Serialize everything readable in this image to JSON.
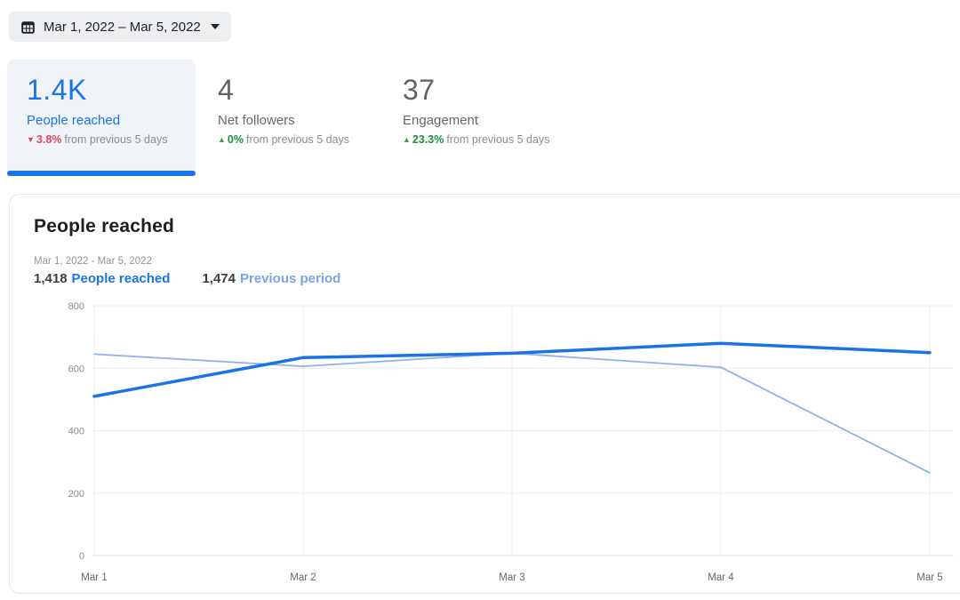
{
  "date_picker": {
    "label": "Mar 1, 2022 – Mar 5, 2022"
  },
  "metrics": [
    {
      "value": "1.4K",
      "label": "People reached",
      "direction": "down",
      "change": "3.8%",
      "suffix": "from previous 5 days",
      "active": true
    },
    {
      "value": "4",
      "label": "Net followers",
      "direction": "up",
      "change": "0%",
      "suffix": "from previous 5 days",
      "active": false
    },
    {
      "value": "37",
      "label": "Engagement",
      "direction": "up",
      "change": "23.3%",
      "suffix": "from previous 5 days",
      "active": false
    }
  ],
  "trend_icons": {
    "up": "▲",
    "down": "▼"
  },
  "chart_card": {
    "title": "People reached",
    "date_range": "Mar 1, 2022 - Mar 5, 2022",
    "legend": [
      {
        "value": "1,418",
        "label": "People reached"
      },
      {
        "value": "1,474",
        "label": "Previous period"
      }
    ]
  },
  "chart_data": {
    "type": "line",
    "title": "People reached",
    "categories": [
      "Mar 1",
      "Mar 2",
      "Mar 3",
      "Mar 4",
      "Mar 5"
    ],
    "series": [
      {
        "name": "People reached",
        "values": [
          510,
          634,
          648,
          680,
          650
        ],
        "color": "#1b74e4",
        "stroke_width": 3.5
      },
      {
        "name": "Previous period",
        "values": [
          645,
          606,
          648,
          603,
          265
        ],
        "color": "#8fb1ea",
        "stroke_width": 1.8
      }
    ],
    "yticks": [
      0,
      200,
      400,
      600,
      800
    ],
    "ylim": [
      0,
      800
    ],
    "xlabel": "",
    "ylabel": "",
    "grid": true,
    "legend_position": "top-left"
  },
  "colors": {
    "accent_blue": "#1b74e4",
    "previous_period_blue": "#8fb1ea",
    "negative_red": "#e0455a",
    "positive_green": "#31a24c",
    "grid_line": "#eaecef",
    "baseline": "#dcdfe3"
  }
}
